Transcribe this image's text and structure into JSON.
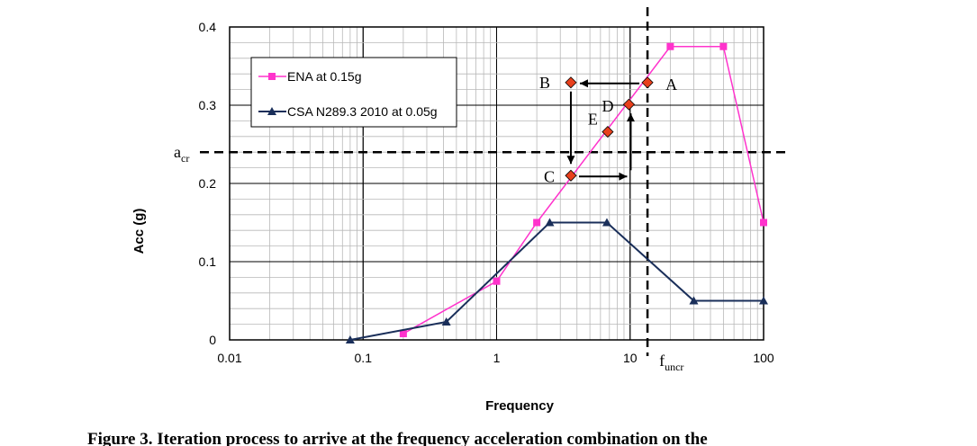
{
  "chart_data": {
    "type": "line",
    "xlabel": "Frequency",
    "ylabel": "Acc (g)",
    "xscale": "log",
    "xlim": [
      0.01,
      100
    ],
    "ylim": [
      0,
      0.4
    ],
    "x_ticks": [
      "0.01",
      "0.1",
      "1",
      "10",
      "100"
    ],
    "y_ticks": [
      "0",
      "0.1",
      "0.2",
      "0.3",
      "0.4"
    ],
    "grid": true,
    "legend_position": "top-left",
    "series": [
      {
        "name": "ENA at 0.15g",
        "color": "#ff33cc",
        "marker": "square",
        "points": [
          [
            0.2,
            0.008
          ],
          [
            1.0,
            0.075
          ],
          [
            2.0,
            0.15
          ],
          [
            20,
            0.375
          ],
          [
            50,
            0.375
          ],
          [
            100,
            0.15
          ]
        ]
      },
      {
        "name": "CSA N289.3 2010 at 0.05g",
        "color": "#1a2f5a",
        "marker": "triangle",
        "points": [
          [
            0.08,
            0.0
          ],
          [
            0.42,
            0.023
          ],
          [
            2.5,
            0.15
          ],
          [
            6.7,
            0.15
          ],
          [
            30,
            0.05
          ],
          [
            100,
            0.05
          ]
        ]
      }
    ],
    "annotations": {
      "color": "#e8401c",
      "points": [
        {
          "label": "A",
          "x": 13.5,
          "y": 0.329
        },
        {
          "label": "B",
          "x": 3.6,
          "y": 0.329
        },
        {
          "label": "C",
          "x": 3.6,
          "y": 0.21
        },
        {
          "label": "D",
          "x": 9.8,
          "y": 0.301
        },
        {
          "label": "E",
          "x": 6.8,
          "y": 0.266
        }
      ],
      "acr": {
        "label": "a",
        "sub": "cr",
        "y": 0.24
      },
      "funcr": {
        "label": "f",
        "sub": "uncr",
        "x": 13.5
      }
    },
    "caption": "Figure 3. Iteration process to arrive at the frequency acceleration combination on the"
  }
}
